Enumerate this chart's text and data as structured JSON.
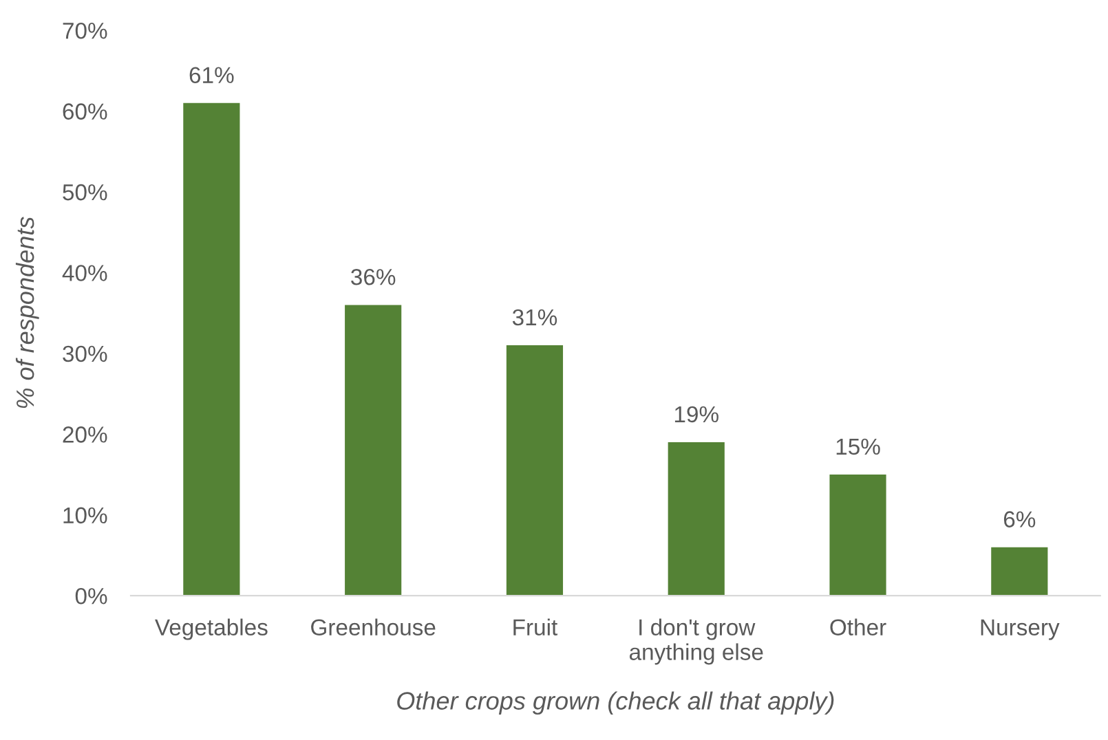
{
  "chart_data": {
    "type": "bar",
    "categories": [
      "Vegetables",
      "Greenhouse",
      "Fruit",
      "I don't grow\nanything else",
      "Other",
      "Nursery"
    ],
    "values": [
      61,
      36,
      31,
      19,
      15,
      6
    ],
    "color": "#548235",
    "xlabel": "Other crops grown (check all that apply)",
    "ylabel": "% of respondents",
    "ylim": [
      0,
      70
    ],
    "yticks": [
      {
        "value": 0,
        "label": "0%"
      },
      {
        "value": 10,
        "label": "10%"
      },
      {
        "value": 20,
        "label": "20%"
      },
      {
        "value": 30,
        "label": "30%"
      },
      {
        "value": 40,
        "label": "40%"
      },
      {
        "value": 50,
        "label": "50%"
      },
      {
        "value": 60,
        "label": "60%"
      },
      {
        "value": 70,
        "label": "70%"
      }
    ],
    "value_labels": [
      "61%",
      "36%",
      "31%",
      "19%",
      "15%",
      "6%"
    ],
    "grid": false
  }
}
